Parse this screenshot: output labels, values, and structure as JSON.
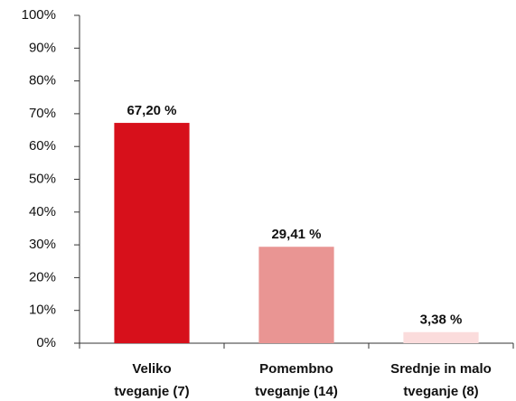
{
  "chart_data": {
    "type": "bar",
    "categories": [
      [
        "Veliko",
        "tveganje (7)"
      ],
      [
        "Pomembno",
        "tveganje (14)"
      ],
      [
        "Srednje in malo",
        "tveganje (8)"
      ]
    ],
    "values": [
      67.2,
      29.41,
      3.38
    ],
    "value_labels": [
      "67,20 %",
      "29,41 %",
      "3,38 %"
    ],
    "colors": [
      "#d7101b",
      "#e99593",
      "#fbdcdc"
    ],
    "ylim": [
      0,
      100
    ],
    "yticks": [
      {
        "value": 0,
        "label": "0%"
      },
      {
        "value": 10,
        "label": "10%"
      },
      {
        "value": 20,
        "label": "20%"
      },
      {
        "value": 30,
        "label": "30%"
      },
      {
        "value": 40,
        "label": "40%"
      },
      {
        "value": 50,
        "label": "50%"
      },
      {
        "value": 60,
        "label": "60%"
      },
      {
        "value": 70,
        "label": "70%"
      },
      {
        "value": 80,
        "label": "80%"
      },
      {
        "value": 90,
        "label": "90%"
      },
      {
        "value": 100,
        "label": "100%"
      }
    ],
    "grid": false
  }
}
